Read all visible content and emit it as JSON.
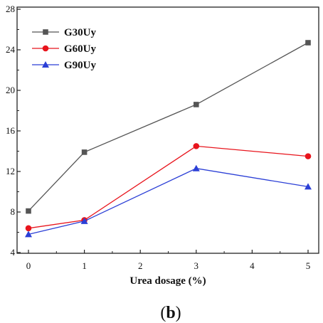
{
  "chart_data": {
    "type": "line",
    "xlabel": "Urea dosage (%)",
    "ylabel": "",
    "xlim": [
      0,
      5
    ],
    "ylim": [
      4,
      28
    ],
    "x_ticks": [
      0,
      1,
      2,
      3,
      4,
      5
    ],
    "y_ticks": [
      4,
      8,
      12,
      16,
      20,
      24,
      28
    ],
    "grid": false,
    "legend_position": "top-left",
    "series": [
      {
        "name": "G30Uy",
        "marker": "square",
        "color": "#555555",
        "x": [
          0,
          1,
          3,
          5
        ],
        "y": [
          8.1,
          13.9,
          18.6,
          24.7
        ]
      },
      {
        "name": "G60Uy",
        "marker": "circle",
        "color": "#e8141c",
        "x": [
          0,
          1,
          3,
          5
        ],
        "y": [
          6.4,
          7.2,
          14.5,
          13.5
        ]
      },
      {
        "name": "G90Uy",
        "marker": "triangle",
        "color": "#2b3fd6",
        "x": [
          0,
          1,
          3,
          5
        ],
        "y": [
          5.8,
          7.1,
          12.3,
          10.5
        ]
      }
    ]
  },
  "caption": {
    "open": "(",
    "letter": "b",
    "close": ")"
  }
}
